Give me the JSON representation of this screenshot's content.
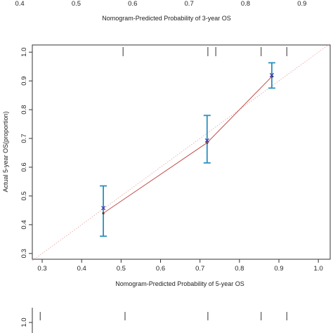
{
  "top_fragment": {
    "tick_labels": [
      "0.4",
      "0.5",
      "0.6",
      "0.7",
      "0.8",
      "0.9"
    ],
    "tick_values": [
      0.4,
      0.5,
      0.6,
      0.7,
      0.8,
      0.9
    ],
    "xlabel": "Nomogram-Predicted Probability of 3-year OS",
    "xlim": [
      0.365,
      0.955
    ]
  },
  "bottom_fragment": {
    "tick_label": "1.0",
    "rug_x": [
      0.295,
      0.51,
      0.72,
      0.855,
      0.92
    ],
    "xlim": [
      0.275,
      1.03
    ]
  },
  "chart_data": {
    "type": "line",
    "xlabel": "Nomogram-Predicted Probability of 5-year OS",
    "ylabel": "Actual 5-year OS(proportion)",
    "xlim": [
      0.275,
      1.03
    ],
    "ylim": [
      0.28,
      1.025
    ],
    "x_ticks": [
      0.3,
      0.4,
      0.5,
      0.6,
      0.7,
      0.8,
      0.9,
      1.0
    ],
    "x_tick_labels": [
      "0.3",
      "0.4",
      "0.5",
      "0.6",
      "0.7",
      "0.8",
      "0.9",
      "1.0"
    ],
    "y_ticks": [
      0.3,
      0.4,
      0.5,
      0.6,
      0.7,
      0.8,
      0.9,
      1.0
    ],
    "y_tick_labels": [
      "0.3",
      "0.4",
      "0.5",
      "0.6",
      "0.7",
      "0.8",
      "0.9",
      "1.0"
    ],
    "rug_x": [
      0.505,
      0.72,
      0.74,
      0.855,
      0.92
    ],
    "series": [
      {
        "role": "calibration",
        "color": "#c0504d",
        "points": [
          {
            "x": 0.455,
            "y": 0.44,
            "lower": 0.36,
            "upper": 0.535
          },
          {
            "x": 0.718,
            "y": 0.685,
            "lower": 0.615,
            "upper": 0.78
          },
          {
            "x": 0.882,
            "y": 0.915,
            "lower": 0.875,
            "upper": 0.963
          }
        ]
      },
      {
        "role": "observed-x-markers",
        "color": "#3b3bb3",
        "points": [
          {
            "x": 0.455,
            "y": 0.458
          },
          {
            "x": 0.718,
            "y": 0.693
          },
          {
            "x": 0.882,
            "y": 0.92
          }
        ]
      },
      {
        "role": "ideal",
        "color": "#e8a0a0",
        "points": [
          {
            "x": 0.275,
            "y": 0.275
          },
          {
            "x": 1.03,
            "y": 1.03
          }
        ]
      }
    ],
    "errorbar_color": "#2c8fbf"
  }
}
